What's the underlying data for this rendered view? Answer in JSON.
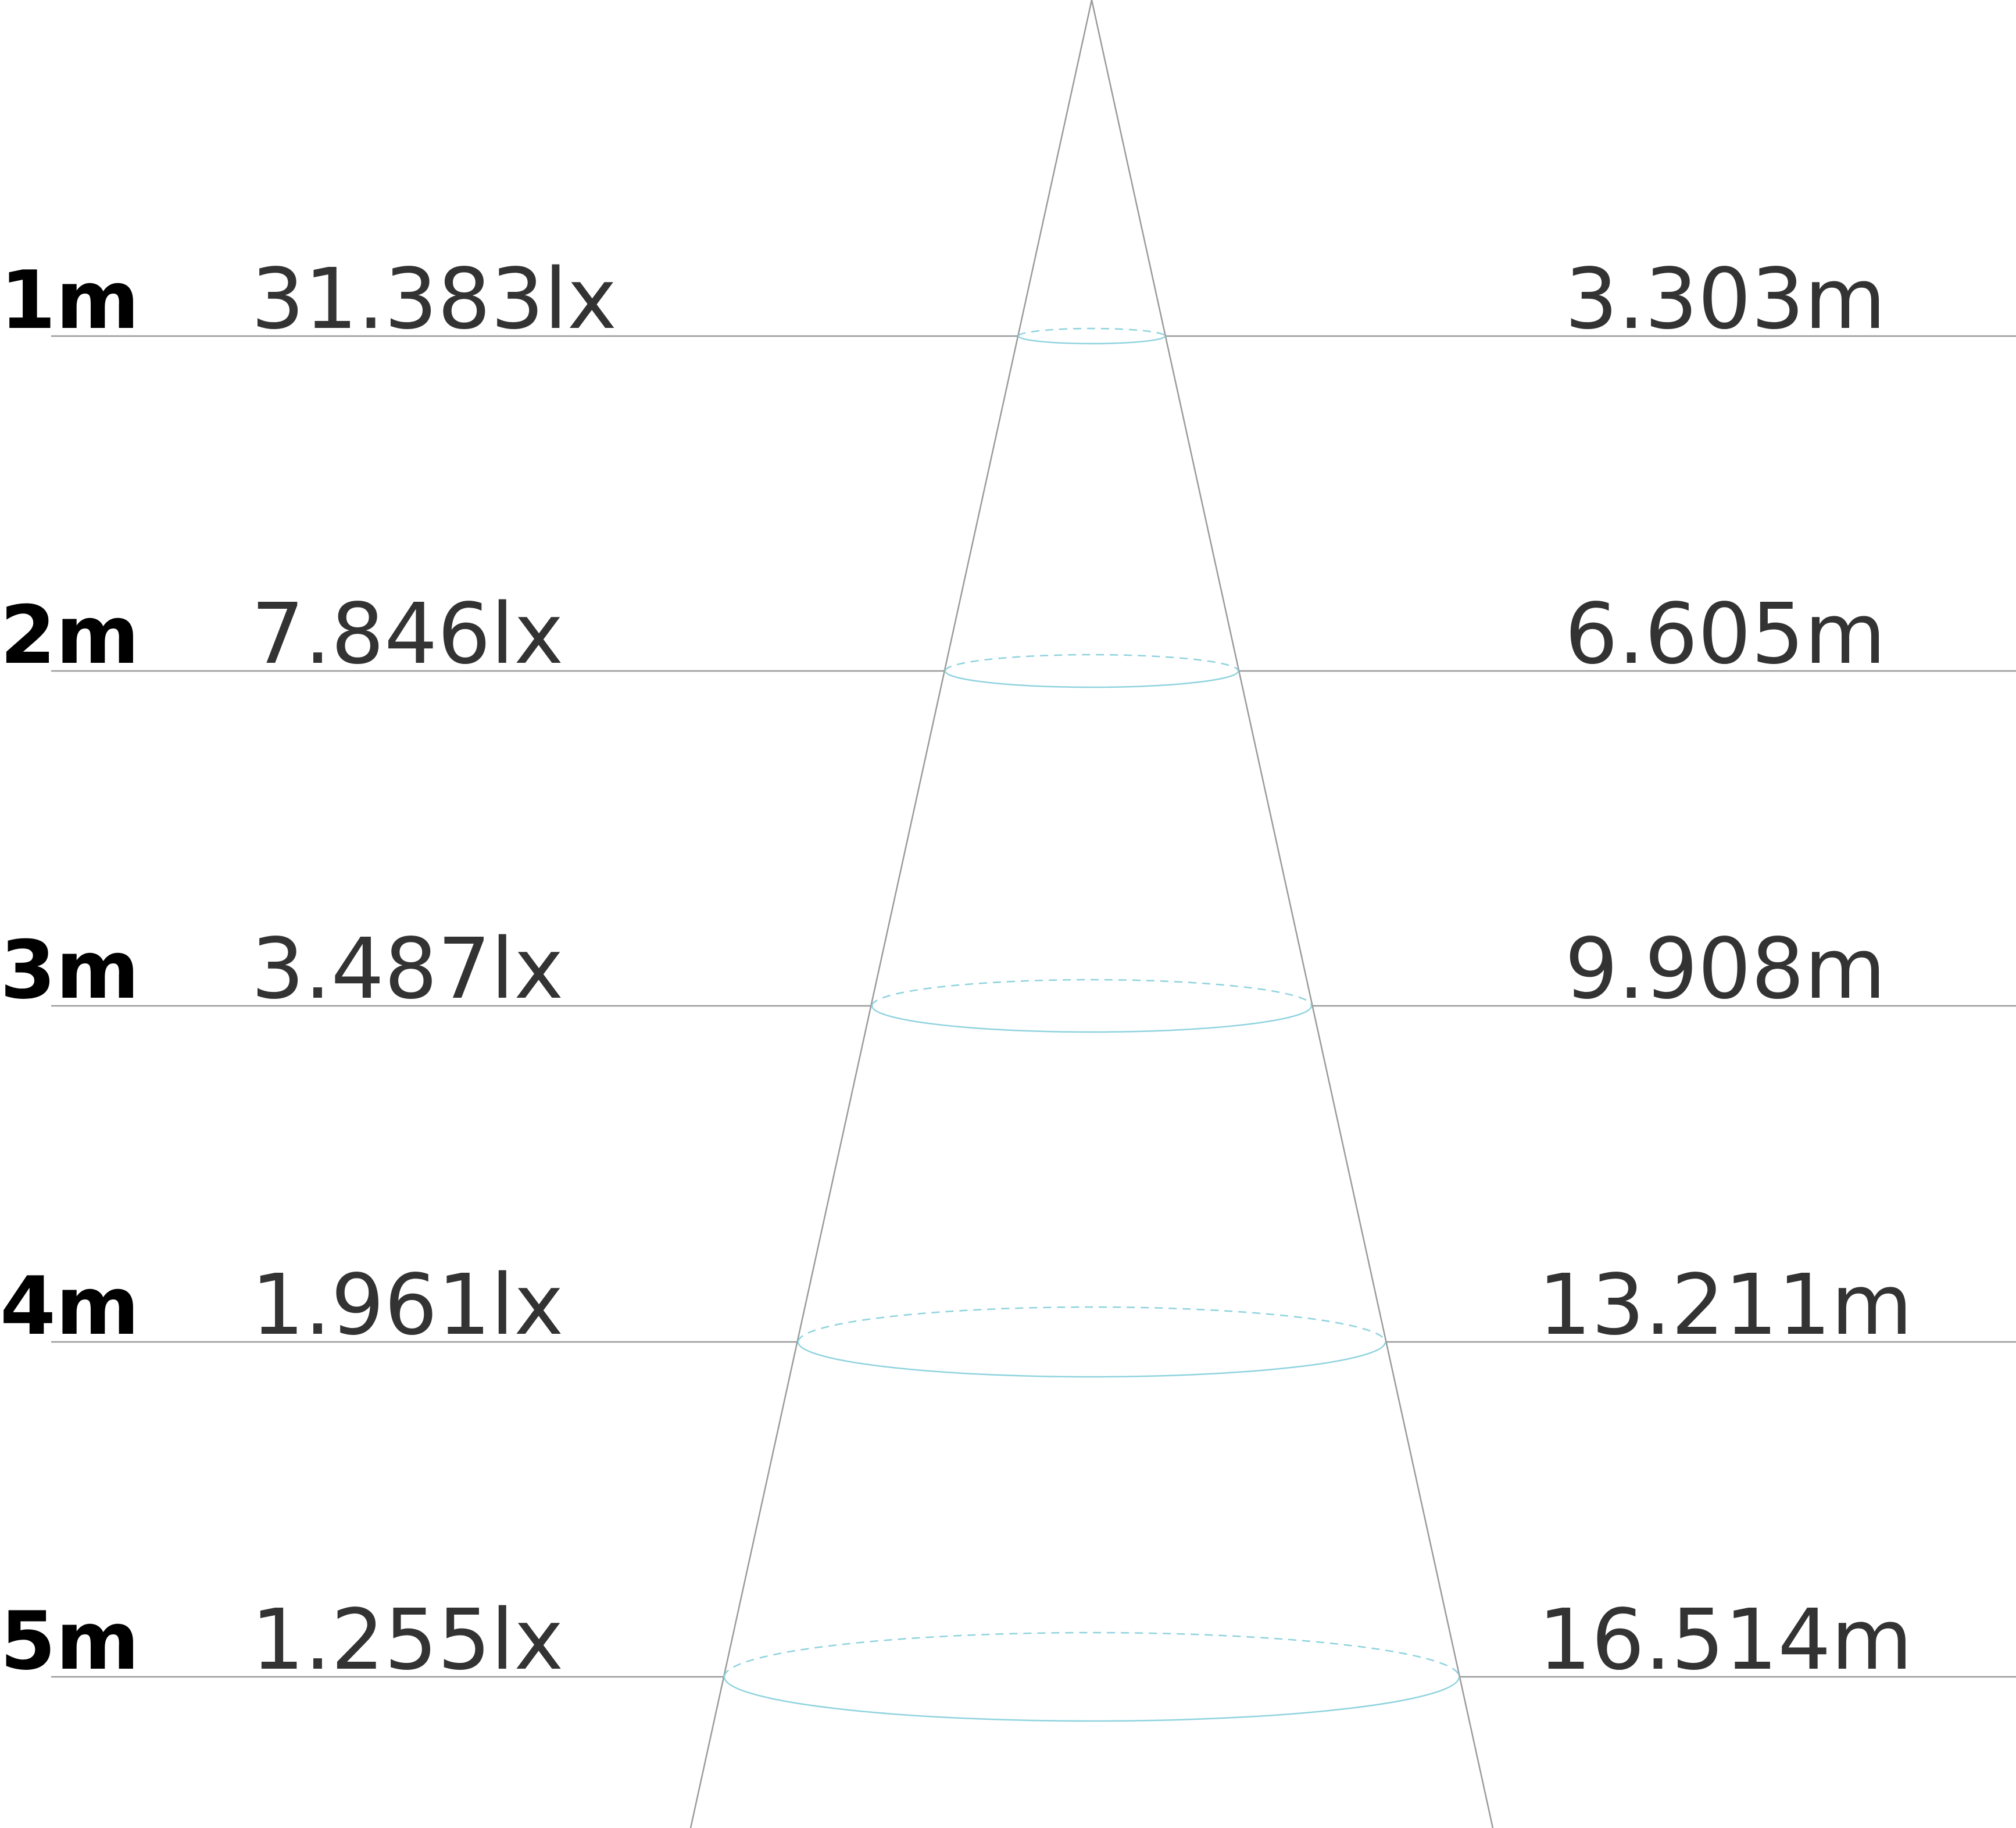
{
  "colors": {
    "background": "#ffffff",
    "guide_lines": "#9a9a9a",
    "beam_ellipses": "#8fd3de",
    "distance_text": "#000000",
    "value_text": "#333333"
  },
  "rows": [
    {
      "distance": "1m",
      "illuminance": "31.383lx",
      "beam_diameter": "3.303m"
    },
    {
      "distance": "2m",
      "illuminance": "7.846lx",
      "beam_diameter": "6.605m"
    },
    {
      "distance": "3m",
      "illuminance": "3.487lx",
      "beam_diameter": "9.908m"
    },
    {
      "distance": "4m",
      "illuminance": "1.961lx",
      "beam_diameter": "13.211m"
    },
    {
      "distance": "5m",
      "illuminance": "1.255lx",
      "beam_diameter": "16.514m"
    }
  ]
}
